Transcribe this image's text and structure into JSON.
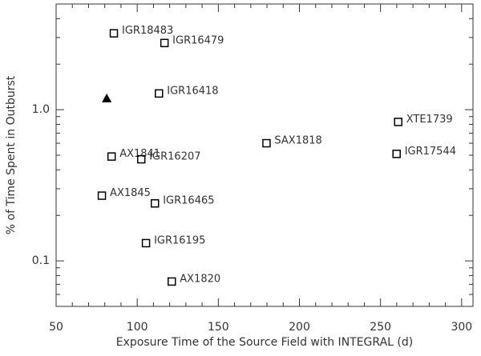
{
  "chart_data": {
    "type": "scatter",
    "x_label": "Exposure Time of the Source Field with INTEGRAL (d)",
    "y_label": "% of Time Spent in Outburst",
    "log_y": true,
    "xlim": [
      50,
      307
    ],
    "xticks": [
      50,
      100,
      150,
      200,
      250,
      300
    ],
    "ylim": [
      0.05,
      5
    ],
    "yticks": [
      {
        "value": 0.1,
        "label": "0.1"
      },
      {
        "value": 1,
        "label": "1.0"
      }
    ],
    "yminorticks": [
      0.06,
      0.07,
      0.08,
      0.09,
      0.2,
      0.3,
      0.4,
      0.5,
      0.6,
      0.7,
      0.8,
      0.9,
      2,
      3,
      4
    ],
    "xminorticks": [
      60,
      70,
      80,
      90,
      110,
      120,
      130,
      140,
      160,
      170,
      180,
      190,
      210,
      220,
      230,
      240,
      260,
      270,
      280,
      290
    ],
    "series": [
      {
        "marker": "square",
        "color": "#000000",
        "x": [
          85.6,
          116.8,
          113.4,
          260.9,
          179.7,
          259.9,
          84.2,
          102.5,
          78.2,
          110.9,
          105.4,
          121.3
        ],
        "values": [
          3.2,
          2.76,
          1.28,
          0.83,
          0.6,
          0.51,
          0.49,
          0.47,
          0.27,
          0.24,
          0.131,
          0.073
        ],
        "labels": [
          "IGR18483",
          "IGR16479",
          "IGR16418",
          "XTE1739",
          "SAX1818",
          "IGR17544",
          "AX1841",
          "IGR16207",
          "AX1845",
          "IGR16465",
          "IGR16195",
          "AX1820"
        ]
      },
      {
        "marker": "triangle",
        "color": "#000000",
        "x": [
          81.2
        ],
        "values": [
          1.19
        ]
      }
    ]
  }
}
